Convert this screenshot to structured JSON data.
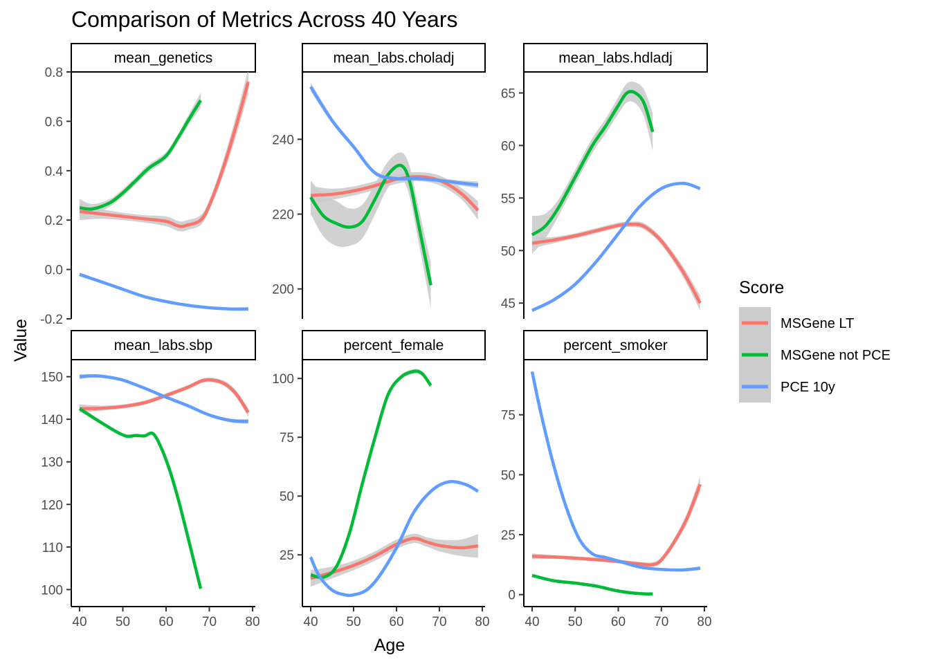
{
  "title": "Comparison of Metrics Across 40 Years",
  "xlabel": "Age",
  "ylabel": "Value",
  "legend": {
    "title": "Score",
    "position": "right",
    "items": [
      {
        "label": "MSGene LT",
        "color": "#F8766D"
      },
      {
        "label": "MSGene not PCE",
        "color": "#00BA38"
      },
      {
        "label": "PCE 10y",
        "color": "#619CFF"
      }
    ]
  },
  "colors": {
    "ribbon": "#cccccc"
  },
  "chart_data": {
    "type": "line",
    "facets": [
      {
        "name": "mean_genetics",
        "xlim": [
          40,
          80
        ],
        "ylim": [
          -0.2,
          0.8
        ],
        "xticks": [
          40,
          50,
          60,
          70,
          80
        ],
        "yticks": [
          -0.2,
          0.0,
          0.2,
          0.4,
          0.6,
          0.8
        ],
        "ytick_labels": [
          "-0.2",
          "0.0",
          "0.2",
          "0.4",
          "0.6",
          "0.8"
        ],
        "series": [
          {
            "name": "MSGene LT",
            "x": [
              40,
              45,
              50,
              55,
              60,
              63,
              65,
              68,
              70,
              73,
              76,
              79
            ],
            "y": [
              0.235,
              0.225,
              0.215,
              0.205,
              0.195,
              0.175,
              0.18,
              0.2,
              0.26,
              0.4,
              0.57,
              0.76
            ],
            "band": [
              0.035,
              0.02,
              0.015,
              0.015,
              0.02,
              0.02,
              0.02,
              0.02,
              0.02,
              0.03,
              0.04,
              0.05
            ]
          },
          {
            "name": "MSGene not PCE",
            "x": [
              40,
              43,
              47,
              50,
              53,
              56,
              60,
              63,
              65,
              68
            ],
            "y": [
              0.25,
              0.245,
              0.27,
              0.31,
              0.36,
              0.41,
              0.46,
              0.54,
              0.6,
              0.685
            ],
            "band": [
              0.035,
              0.02,
              0.015,
              0.015,
              0.015,
              0.015,
              0.015,
              0.015,
              0.02,
              0.03
            ]
          },
          {
            "name": "PCE 10y",
            "x": [
              40,
              45,
              50,
              55,
              60,
              65,
              70,
              75,
              79
            ],
            "y": [
              -0.02,
              -0.05,
              -0.08,
              -0.11,
              -0.13,
              -0.145,
              -0.155,
              -0.16,
              -0.16
            ],
            "band": [
              0.008,
              0.006,
              0.005,
              0.005,
              0.005,
              0.005,
              0.005,
              0.006,
              0.008
            ]
          }
        ]
      },
      {
        "name": "mean_labs.choladj",
        "xlim": [
          40,
          80
        ],
        "ylim": [
          192,
          258
        ],
        "xticks": [
          40,
          50,
          60,
          70,
          80
        ],
        "yticks": [
          200,
          220,
          240
        ],
        "ytick_labels": [
          "200",
          "220",
          "240"
        ],
        "series": [
          {
            "name": "MSGene LT",
            "x": [
              40,
              45,
              50,
              55,
              60,
              65,
              70,
              75,
              79
            ],
            "y": [
              225,
              225.3,
              226.2,
              227.6,
              229.3,
              230,
              229,
              225.6,
              221
            ],
            "band": [
              2.5,
              1.5,
              1.2,
              1.2,
              1.2,
              1.2,
              1.3,
              1.5,
              2.5
            ]
          },
          {
            "name": "MSGene not PCE",
            "x": [
              40,
              43,
              46,
              49,
              52,
              55,
              58,
              61,
              63,
              65,
              68
            ],
            "y": [
              224.5,
              219.5,
              217.5,
              216.5,
              218,
              224,
              230.5,
              233,
              229,
              218,
              201
            ],
            "band": [
              4.5,
              5.5,
              6,
              5,
              4.5,
              4,
              3.5,
              3.5,
              4,
              4.5,
              6
            ]
          },
          {
            "name": "PCE 10y",
            "x": [
              40,
              45,
              50,
              55,
              60,
              65,
              70,
              75,
              79
            ],
            "y": [
              254,
              245,
              238,
              231,
              229.5,
              229.5,
              229,
              228.3,
              227.8
            ],
            "band": [
              1.2,
              0.8,
              0.6,
              0.6,
              0.6,
              0.6,
              0.6,
              0.7,
              0.9
            ]
          }
        ]
      },
      {
        "name": "mean_labs.hdladj",
        "xlim": [
          40,
          80
        ],
        "ylim": [
          43.5,
          67
        ],
        "xticks": [
          40,
          50,
          60,
          70,
          80
        ],
        "yticks": [
          45,
          50,
          55,
          60,
          65
        ],
        "ytick_labels": [
          "45",
          "50",
          "55",
          "60",
          "65"
        ],
        "series": [
          {
            "name": "MSGene LT",
            "x": [
              40,
              45,
              50,
              55,
              60,
              63,
              66,
              70,
              75,
              79
            ],
            "y": [
              50.7,
              51,
              51.4,
              51.9,
              52.4,
              52.5,
              52.3,
              50.9,
              48,
              45
            ],
            "band": [
              0.5,
              0.3,
              0.25,
              0.25,
              0.25,
              0.25,
              0.3,
              0.35,
              0.5,
              0.7
            ]
          },
          {
            "name": "MSGene not PCE",
            "x": [
              40,
              43,
              46,
              50,
              54,
              57,
              60,
              62,
              64,
              66,
              68
            ],
            "y": [
              51.5,
              52.3,
              54,
              57,
              60,
              61.8,
              63.8,
              65,
              65,
              64,
              61.3
            ],
            "band": [
              1.8,
              1.2,
              0.8,
              0.7,
              0.7,
              0.7,
              0.8,
              0.9,
              1.0,
              1.3,
              1.8
            ]
          },
          {
            "name": "PCE 10y",
            "x": [
              40,
              45,
              50,
              55,
              60,
              65,
              70,
              75,
              79
            ],
            "y": [
              44.3,
              45.3,
              46.8,
              49,
              51.6,
              54.2,
              55.9,
              56.4,
              55.9
            ],
            "band": [
              0.15,
              0.12,
              0.1,
              0.1,
              0.1,
              0.1,
              0.1,
              0.12,
              0.15
            ]
          }
        ]
      },
      {
        "name": "mean_labs.sbp",
        "xlim": [
          40,
          80
        ],
        "ylim": [
          96,
          154
        ],
        "xticks": [
          40,
          50,
          60,
          70,
          80
        ],
        "yticks": [
          100,
          110,
          120,
          130,
          140,
          150
        ],
        "ytick_labels": [
          "100",
          "110",
          "120",
          "130",
          "140",
          "150"
        ],
        "series": [
          {
            "name": "MSGene LT",
            "x": [
              40,
              45,
              50,
              55,
              60,
              65,
              69,
              73,
              76,
              79
            ],
            "y": [
              142.5,
              142.6,
              143,
              143.9,
              145.6,
              147.5,
              149.2,
              148.6,
              146.2,
              141.6
            ],
            "band": [
              1.0,
              0.6,
              0.5,
              0.5,
              0.5,
              0.5,
              0.5,
              0.6,
              0.8,
              1.0
            ]
          },
          {
            "name": "MSGene not PCE",
            "x": [
              40,
              43,
              46,
              49,
              51,
              53,
              55,
              57,
              59,
              61,
              63,
              65,
              68
            ],
            "y": [
              142.5,
              140.5,
              138.6,
              136.8,
              136,
              136.2,
              136.1,
              136.6,
              133,
              127.5,
              120.5,
              112.5,
              100.2
            ],
            "band": [
              0.6,
              0.5,
              0.4,
              0.4,
              0.4,
              0.4,
              0.4,
              0.4,
              0.4,
              0.4,
              0.4,
              0.5,
              0.6
            ]
          },
          {
            "name": "PCE 10y",
            "x": [
              40,
              43,
              46,
              50,
              55,
              60,
              65,
              70,
              75,
              79
            ],
            "y": [
              150,
              150.2,
              150,
              149.2,
              147.3,
              145.2,
              143.2,
              141,
              139.7,
              139.5
            ],
            "band": [
              0.6,
              0.4,
              0.35,
              0.35,
              0.35,
              0.35,
              0.35,
              0.35,
              0.45,
              0.6
            ]
          }
        ]
      },
      {
        "name": "percent_female",
        "xlim": [
          40,
          80
        ],
        "ylim": [
          3,
          108
        ],
        "xticks": [
          40,
          50,
          60,
          70,
          80
        ],
        "yticks": [
          25,
          50,
          75,
          100
        ],
        "ytick_labels": [
          "25",
          "50",
          "75",
          "100"
        ],
        "series": [
          {
            "name": "MSGene LT",
            "x": [
              40,
              45,
              50,
              55,
              60,
              64,
              67,
              70,
              75,
              79
            ],
            "y": [
              15,
              17.5,
              20.5,
              24.5,
              29.5,
              32,
              30.5,
              29,
              28,
              28.8
            ],
            "band": [
              3.5,
              2.5,
              2,
              2,
              2,
              2,
              2,
              2.5,
              3.5,
              5
            ]
          },
          {
            "name": "MSGene not PCE",
            "x": [
              40,
              43,
              46,
              49,
              52,
              55,
              58,
              61,
              64,
              66,
              68
            ],
            "y": [
              16.5,
              15.5,
              20,
              34,
              55,
              75,
              93,
              100.5,
              103,
              102,
              97
            ],
            "band": [
              1.2,
              1,
              1,
              1,
              1,
              1,
              1,
              1,
              1,
              1,
              1.2
            ]
          },
          {
            "name": "PCE 10y",
            "x": [
              40,
              42,
              45,
              48,
              50,
              53,
              56,
              60,
              64,
              68,
              72,
              76,
              79
            ],
            "y": [
              24,
              16,
              10,
              8,
              8,
              10,
              16,
              28,
              43,
              52,
              56,
              55,
              52
            ],
            "band": [
              0.8,
              0.6,
              0.5,
              0.5,
              0.5,
              0.5,
              0.5,
              0.5,
              0.5,
              0.5,
              0.5,
              0.6,
              0.8
            ]
          }
        ]
      },
      {
        "name": "percent_smoker",
        "xlim": [
          40,
          80
        ],
        "ylim": [
          -5,
          98
        ],
        "xticks": [
          40,
          50,
          60,
          70,
          80
        ],
        "yticks": [
          0,
          25,
          50,
          75
        ],
        "ytick_labels": [
          "0",
          "25",
          "50",
          "75"
        ],
        "series": [
          {
            "name": "MSGene LT",
            "x": [
              40,
              45,
              50,
              55,
              60,
              65,
              68,
              70,
              73,
              76,
              79
            ],
            "y": [
              16,
              15.7,
              15.2,
              14.6,
              13.8,
              12.8,
              12.5,
              14.5,
              22,
              32,
              46
            ],
            "band": [
              1.2,
              0.8,
              0.8,
              0.8,
              0.8,
              0.8,
              1,
              1.2,
              1.6,
              2.2,
              3.2
            ]
          },
          {
            "name": "MSGene not PCE",
            "x": [
              40,
              45,
              50,
              55,
              60,
              65,
              68
            ],
            "y": [
              8,
              5.8,
              4.8,
              3.5,
              1.5,
              0.4,
              0.3
            ],
            "band": [
              0.5,
              0.3,
              0.3,
              0.3,
              0.3,
              0.3,
              0.4
            ]
          },
          {
            "name": "PCE 10y",
            "x": [
              40,
              42,
              45,
              48,
              51,
              54,
              57,
              60,
              65,
              70,
              75,
              79
            ],
            "y": [
              93,
              76,
              54,
              36,
              23,
              17,
              15.5,
              14,
              11.5,
              10.5,
              10.3,
              11
            ],
            "band": [
              0.8,
              0.5,
              0.5,
              0.5,
              0.5,
              0.5,
              0.5,
              0.5,
              0.5,
              0.5,
              0.5,
              0.8
            ]
          }
        ]
      }
    ]
  }
}
